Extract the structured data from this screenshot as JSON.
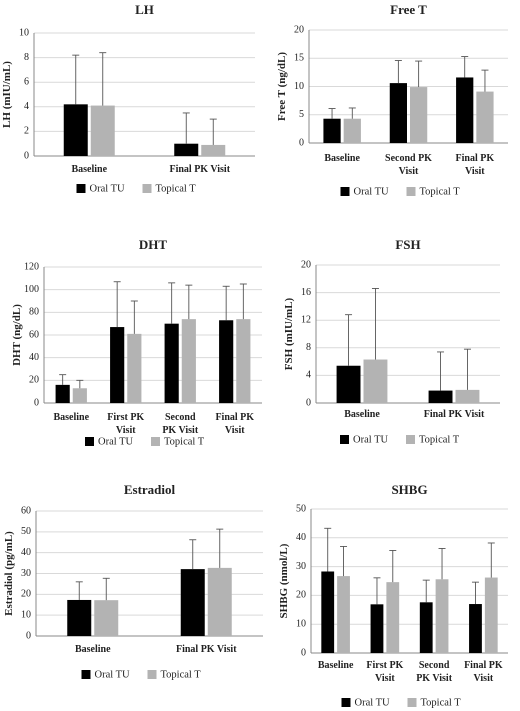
{
  "legend": {
    "series1": "Oral TU",
    "series2": "Topical T",
    "colors": [
      "#000000",
      "#b3b3b3"
    ]
  },
  "chart_data": [
    {
      "type": "bar",
      "title": "LH",
      "ylabel": "LH (mIU/mL)",
      "categories": [
        [
          "Baseline"
        ],
        [
          "Final PK Visit"
        ]
      ],
      "ylim": [
        0,
        10
      ],
      "yticks": [
        "0",
        "2",
        "4",
        "6",
        "8",
        "10"
      ],
      "series": [
        {
          "name": "Oral TU",
          "values": [
            4.2,
            1.0
          ],
          "error": [
            4.0,
            2.5
          ]
        },
        {
          "name": "Topical T",
          "values": [
            4.1,
            0.9
          ],
          "error": [
            4.3,
            2.1
          ]
        }
      ],
      "grid": true,
      "legend": "bottom"
    },
    {
      "type": "bar",
      "title": "Free T",
      "ylabel": "Free T (ng/dL)",
      "categories": [
        [
          "Baseline"
        ],
        [
          "Second PK",
          "Visit"
        ],
        [
          "Final PK",
          "Visit"
        ]
      ],
      "ylim": [
        0,
        20
      ],
      "yticks": [
        "0",
        "5",
        "10",
        "15",
        "20"
      ],
      "series": [
        {
          "name": "Oral TU",
          "values": [
            4.3,
            10.6,
            11.6
          ],
          "error": [
            1.8,
            4.0,
            3.7
          ]
        },
        {
          "name": "Topical T",
          "values": [
            4.3,
            9.9,
            9.1
          ],
          "error": [
            1.9,
            4.6,
            3.8
          ]
        }
      ],
      "grid": true,
      "legend": "bottom"
    },
    {
      "type": "bar",
      "title": "DHT",
      "ylabel": "DHT (ng/dL)",
      "categories": [
        [
          "Baseline"
        ],
        [
          "First PK",
          "Visit"
        ],
        [
          "Second",
          "PK Visit"
        ],
        [
          "Final PK",
          "Visit"
        ]
      ],
      "ylim": [
        0,
        120
      ],
      "yticks": [
        "0",
        "20",
        "40",
        "60",
        "80",
        "100",
        "120"
      ],
      "series": [
        {
          "name": "Oral TU",
          "values": [
            16,
            67,
            70,
            73
          ],
          "error": [
            9,
            40,
            36,
            30
          ]
        },
        {
          "name": "Topical T",
          "values": [
            13,
            61,
            74,
            74
          ],
          "error": [
            7,
            29,
            30,
            31
          ]
        }
      ],
      "grid": true,
      "legend": "bottom"
    },
    {
      "type": "bar",
      "title": "FSH",
      "ylabel": "FSH (mIU/mL)",
      "categories": [
        [
          "Baseline"
        ],
        [
          "Final PK Visit"
        ]
      ],
      "ylim": [
        0,
        20
      ],
      "yticks": [
        "0",
        "4",
        "8",
        "12",
        "16",
        "20"
      ],
      "series": [
        {
          "name": "Oral TU",
          "values": [
            5.4,
            1.8
          ],
          "error": [
            7.4,
            5.6
          ]
        },
        {
          "name": "Topical T",
          "values": [
            6.3,
            1.9
          ],
          "error": [
            10.3,
            5.9
          ]
        }
      ],
      "grid": true,
      "legend": "bottom"
    },
    {
      "type": "bar",
      "title": "Estradiol",
      "ylabel": "Estradiol (pg/mL)",
      "categories": [
        [
          "Baseline"
        ],
        [
          "Final PK Visit"
        ]
      ],
      "ylim": [
        0,
        60
      ],
      "yticks": [
        "0",
        "10",
        "20",
        "30",
        "40",
        "50",
        "60"
      ],
      "series": [
        {
          "name": "Oral TU",
          "values": [
            17.3,
            32.1
          ],
          "error": [
            8.7,
            14.1
          ]
        },
        {
          "name": "Topical T",
          "values": [
            17.2,
            32.7
          ],
          "error": [
            10.5,
            18.6
          ]
        }
      ],
      "grid": true,
      "legend": "bottom"
    },
    {
      "type": "bar",
      "title": "SHBG",
      "ylabel": "SHBG (nmol/L)",
      "categories": [
        [
          "Baseline"
        ],
        [
          "First PK",
          "Visit"
        ],
        [
          "Second",
          "PK Visit"
        ],
        [
          "Final PK",
          "Visit"
        ]
      ],
      "ylim": [
        0,
        50
      ],
      "yticks": [
        "0",
        "10",
        "20",
        "30",
        "40",
        "50"
      ],
      "series": [
        {
          "name": "Oral TU",
          "values": [
            28.3,
            16.9,
            17.6,
            17.0
          ],
          "error": [
            15.0,
            9.2,
            7.7,
            7.6
          ]
        },
        {
          "name": "Topical T",
          "values": [
            26.7,
            24.6,
            25.6,
            26.2
          ],
          "error": [
            10.3,
            11.0,
            10.7,
            12.0
          ]
        }
      ],
      "grid": true,
      "legend": "bottom"
    }
  ]
}
